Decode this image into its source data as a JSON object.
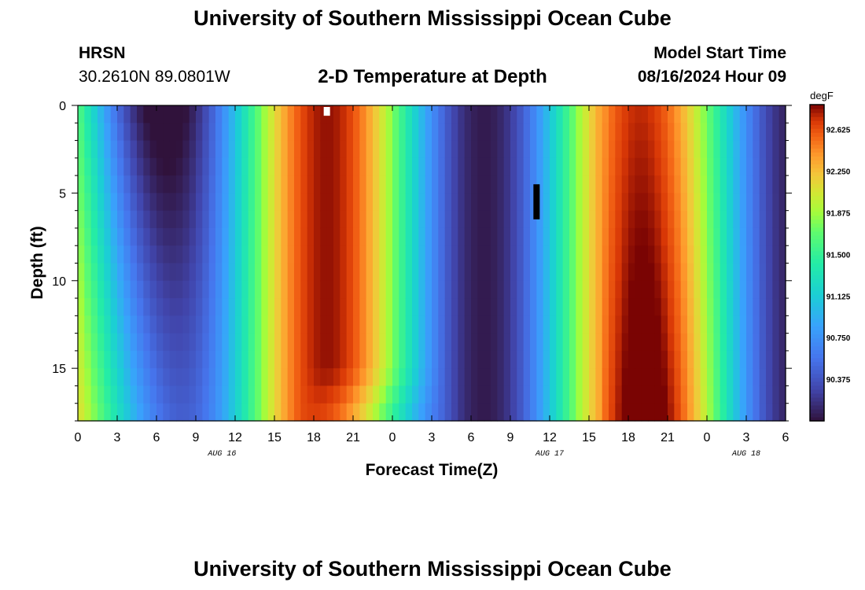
{
  "header": {
    "title": "University of Southern Mississippi Ocean Cube",
    "station": "HRSN",
    "coords": "30.2610N  89.0801W",
    "plot_title": "2-D Temperature at Depth",
    "start_label": "Model Start Time",
    "start_value": "08/16/2024 Hour 09"
  },
  "footer": {
    "title": "University of Southern Mississippi Ocean Cube"
  },
  "chart_data": {
    "type": "heatmap",
    "title": "2-D Temperature at Depth",
    "xlabel": "Forecast Time(Z)",
    "ylabel": "Depth (ft)",
    "x_range_hours": [
      0,
      54
    ],
    "x_tick_labels": [
      "0",
      "3",
      "6",
      "9",
      "12",
      "15",
      "18",
      "21",
      "0",
      "3",
      "6",
      "9",
      "12",
      "15",
      "18",
      "21",
      "0",
      "3",
      "6"
    ],
    "date_labels": [
      {
        "label": "AUG 16",
        "hour": 11
      },
      {
        "label": "AUG 17",
        "hour": 36
      },
      {
        "label": "AUG 18",
        "hour": 51
      }
    ],
    "y_range": [
      0,
      18
    ],
    "y_tick_labels": [
      "0",
      "5",
      "10",
      "15"
    ],
    "y_tick_values": [
      0,
      5,
      10,
      15
    ],
    "colorbar": {
      "unit": "degF",
      "min": 90.0,
      "max": 92.85,
      "tick_values": [
        90.375,
        90.75,
        91.125,
        91.5,
        91.875,
        92.25,
        92.625
      ],
      "tick_labels": [
        "90.375",
        "90.750",
        "91.125",
        "91.500",
        "91.875",
        "92.250",
        "92.625"
      ]
    },
    "markers": [
      {
        "color": "#ffffff",
        "hour": 19,
        "depth_from": 0,
        "depth_to": 0.5
      },
      {
        "color": "#000000",
        "hour": 35,
        "depth_from": 4.5,
        "depth_to": 6.5
      }
    ]
  }
}
